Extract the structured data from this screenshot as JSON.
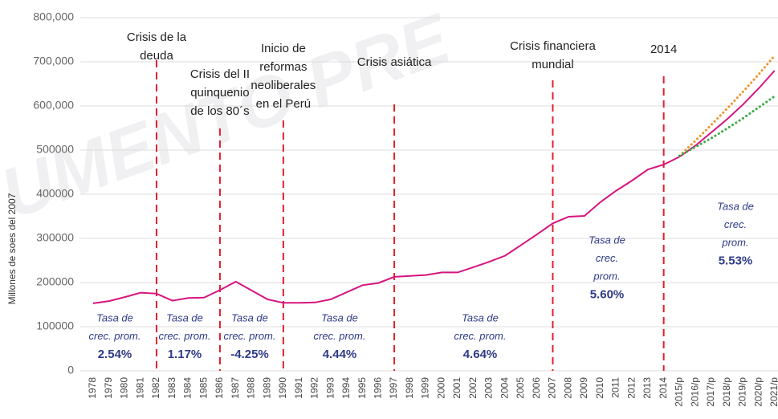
{
  "chart_data": {
    "type": "line",
    "y_label": "Millones de soes del 2007",
    "watermark": "UMENTO PRE",
    "categories": [
      "1978",
      "1979",
      "1980",
      "1981",
      "1982",
      "1983",
      "1984",
      "1985",
      "1986",
      "1987",
      "1988",
      "1989",
      "1990",
      "1991",
      "1992",
      "1993",
      "1994",
      "1995",
      "1996",
      "1997",
      "1998",
      "1999",
      "2000",
      "2001",
      "2002",
      "2003",
      "2004",
      "2005",
      "2006",
      "2007",
      "2008",
      "2009",
      "2010",
      "2011",
      "2012",
      "2013",
      "2014",
      "2015/p",
      "2016/p",
      "2017/p",
      "2018/p",
      "2019/p",
      "2020/p",
      "2021/p"
    ],
    "series": [
      {
        "color": "#d6157f",
        "style": "solid",
        "values": [
          153000,
          158000,
          167000,
          177000,
          175000,
          159000,
          165000,
          166000,
          183000,
          202000,
          182000,
          162000,
          154000,
          154000,
          155000,
          162000,
          178000,
          194000,
          199000,
          213000,
          215000,
          217000,
          223000,
          223000,
          235000,
          247000,
          261000,
          285000,
          309000,
          334000,
          349000,
          351000,
          382000,
          408000,
          431000,
          456000,
          467000,
          485000,
          510000,
          540000,
          570000,
          603000,
          640000,
          680000
        ]
      },
      {
        "color": "#f0932b",
        "style": "dotted",
        "values": [
          null,
          null,
          null,
          null,
          null,
          null,
          null,
          null,
          null,
          null,
          null,
          null,
          null,
          null,
          null,
          null,
          null,
          null,
          null,
          null,
          null,
          null,
          null,
          null,
          null,
          null,
          null,
          null,
          null,
          null,
          null,
          null,
          null,
          null,
          null,
          null,
          null,
          487000,
          521000,
          557000,
          594000,
          632000,
          672000,
          714000
        ]
      },
      {
        "color": "#3aa845",
        "style": "dotted",
        "values": [
          null,
          null,
          null,
          null,
          null,
          null,
          null,
          null,
          null,
          null,
          null,
          null,
          null,
          null,
          null,
          null,
          null,
          null,
          null,
          null,
          null,
          null,
          null,
          null,
          null,
          null,
          null,
          null,
          null,
          null,
          null,
          null,
          null,
          null,
          null,
          null,
          null,
          487000,
          507000,
          527000,
          549000,
          572000,
          597000,
          622000
        ]
      }
    ],
    "ylim": [
      0,
      800000
    ],
    "yticks": [
      0,
      100000,
      200000,
      300000,
      400000,
      500000,
      {
        "value": 600000,
        "label": "600,000"
      },
      {
        "value": 700000,
        "label": "700,000"
      },
      {
        "value": 800000,
        "label": "800,000"
      }
    ],
    "grid": true,
    "event_color": "#e0202a",
    "events": [
      {
        "x": "1982",
        "label": [
          "Crisis de la",
          "deuda"
        ]
      },
      {
        "x": "1986",
        "label": [
          "Crisis del II",
          "quinquenio",
          "de los 80´s"
        ]
      },
      {
        "x": "1990",
        "label": [
          "Inicio de",
          "reformas",
          "neoliberales",
          "en el Perú"
        ]
      },
      {
        "x": "1997",
        "label": [
          "Crisis asiática"
        ]
      },
      {
        "x": "2007",
        "label": [
          "Crisis financiera",
          "mundial"
        ]
      },
      {
        "x": "2014",
        "label": [
          "2014"
        ]
      }
    ],
    "growth_rates": {
      "labels": [
        [
          "Tasa de",
          "crec. prom."
        ],
        [
          "Tasa de",
          "crec. prom."
        ],
        [
          "Tasa de",
          "crec. prom."
        ],
        [
          "Tasa de",
          "crec. prom."
        ],
        [
          "Tasa de",
          "crec. prom."
        ],
        [
          "Tasa de",
          "crec.",
          "prom."
        ],
        [
          "Tasa de",
          "crec.",
          "prom."
        ]
      ],
      "values": [
        2.54,
        1.17,
        -4.25,
        4.44,
        4.64,
        5.6,
        5.53
      ],
      "value_labels": [
        "2.54%",
        "1.17%",
        "-4.25%",
        "4.44%",
        "4.64%",
        "5.60%",
        "5.53%"
      ]
    }
  }
}
